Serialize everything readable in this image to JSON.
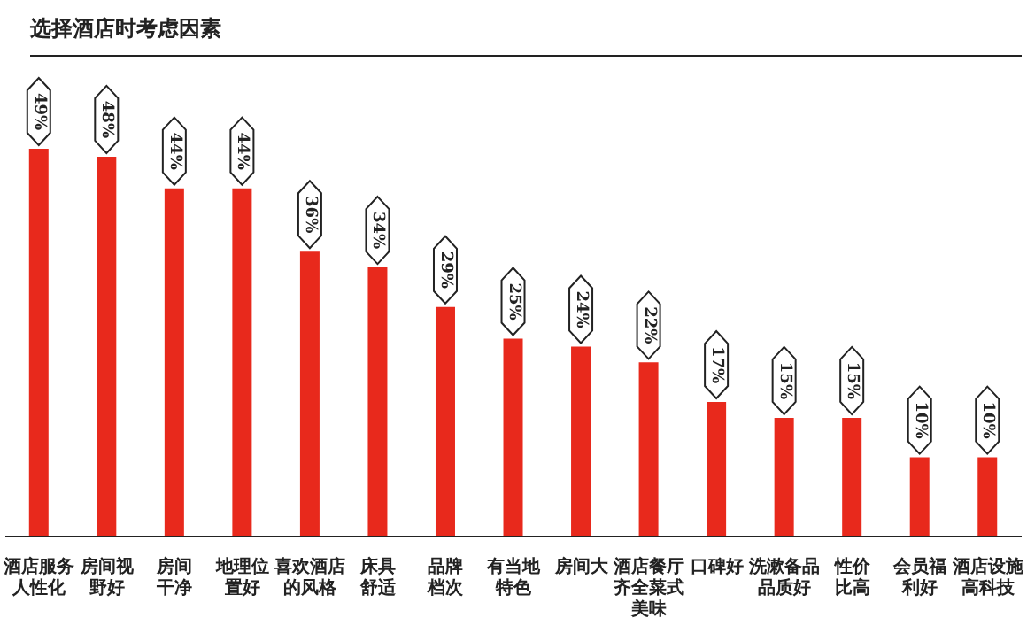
{
  "chart_data": {
    "type": "bar",
    "title": "选择酒店时考虑因素",
    "categories": [
      "酒店服务人性化",
      "房间视野好",
      "房间干净",
      "地理位置好",
      "喜欢酒店的风格",
      "床具舒适",
      "品牌档次",
      "有当地特色",
      "房间大",
      "酒店餐厅齐全菜式美味",
      "口碑好",
      "洗漱备品品质好",
      "性价比高",
      "会员福利好",
      "酒店设施高科技"
    ],
    "values": [
      49,
      48,
      44,
      44,
      36,
      34,
      29,
      25,
      24,
      22,
      17,
      15,
      15,
      10,
      10
    ],
    "value_labels": [
      "49%",
      "48%",
      "44%",
      "44%",
      "36%",
      "34%",
      "29%",
      "25%",
      "24%",
      "22%",
      "17%",
      "15%",
      "15%",
      "10%",
      "10%"
    ],
    "color": "#e8291c",
    "tick_labels": "x"
  }
}
